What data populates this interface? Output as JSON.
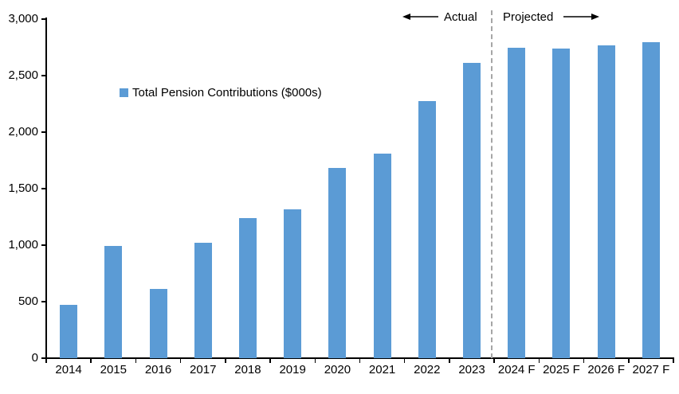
{
  "chart_data": {
    "type": "bar",
    "title": "",
    "xlabel": "",
    "ylabel": "",
    "legend": [
      {
        "label": "Total Pension Contributions ($000s)",
        "color": "#5B9BD5"
      }
    ],
    "legend_position": "upper-left-inside",
    "grid": false,
    "categories": [
      "2014",
      "2015",
      "2016",
      "2017",
      "2018",
      "2019",
      "2020",
      "2021",
      "2022",
      "2023",
      "2024 F",
      "2025 F",
      "2026 F",
      "2027 F"
    ],
    "values": [
      470,
      990,
      610,
      1020,
      1240,
      1320,
      1680,
      1810,
      2275,
      2610,
      2750,
      2740,
      2770,
      2795
    ],
    "ylim": [
      0,
      3000
    ],
    "y_ticks": [
      {
        "value": 0,
        "label": "0"
      },
      {
        "value": 500,
        "label": "500"
      },
      {
        "value": 1000,
        "label": "1,000"
      },
      {
        "value": 1500,
        "label": "1,500"
      },
      {
        "value": 2000,
        "label": "2,000"
      },
      {
        "value": 2500,
        "label": "2,500"
      },
      {
        "value": 3000,
        "label": "3,000"
      }
    ],
    "annotations": {
      "actual": "Actual",
      "projected": "Projected",
      "divider_after_category": "2023"
    },
    "colors": {
      "bar": "#5B9BD5",
      "divider": "#A6A6A6",
      "axis": "#000000",
      "text": "#000000",
      "background": "#FFFFFF"
    }
  }
}
